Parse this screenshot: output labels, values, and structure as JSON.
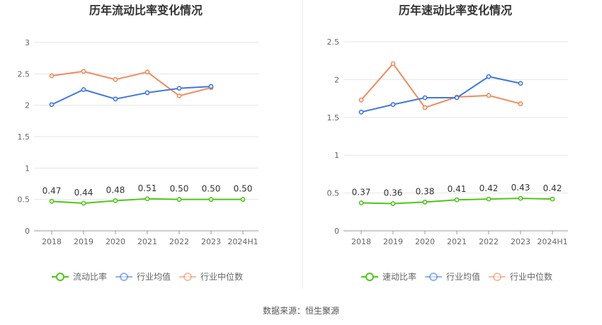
{
  "colors": {
    "company": "#52c41a",
    "industry_avg": "#3f78dc",
    "industry_median": "#f08a5d",
    "grid": "#e6e6e6",
    "axis": "#999999",
    "divider": "#e8e8e8"
  },
  "source": "数据来源：恒生聚源",
  "chart_data": [
    {
      "type": "line",
      "title": "历年流动比率变化情况",
      "categories": [
        "2018",
        "2019",
        "2020",
        "2021",
        "2022",
        "2023",
        "2024H1"
      ],
      "ylim": [
        0,
        3
      ],
      "yticks": [
        "0",
        "0.5",
        "1",
        "1.5",
        "2",
        "2.5",
        "3"
      ],
      "ytick_values": [
        0,
        0.5,
        1,
        1.5,
        2,
        2.5,
        3
      ],
      "legend_position": "bottom",
      "series": [
        {
          "name": "流动比率",
          "key": "company",
          "values": [
            0.47,
            0.44,
            0.48,
            0.51,
            0.5,
            0.5,
            0.5
          ],
          "labels": [
            "0.47",
            "0.44",
            "0.48",
            "0.51",
            "0.50",
            "0.50",
            "0.50"
          ]
        },
        {
          "name": "行业均值",
          "key": "industry_avg",
          "values": [
            2.01,
            2.25,
            2.1,
            2.2,
            2.27,
            2.3,
            null
          ]
        },
        {
          "name": "行业中位数",
          "key": "industry_median",
          "values": [
            2.47,
            2.54,
            2.41,
            2.53,
            2.15,
            2.28,
            null
          ]
        }
      ]
    },
    {
      "type": "line",
      "title": "历年速动比率变化情况",
      "categories": [
        "2018",
        "2019",
        "2020",
        "2021",
        "2022",
        "2023",
        "2024H1"
      ],
      "ylim": [
        0,
        2.5
      ],
      "yticks": [
        "0",
        "0.5",
        "1",
        "1.5",
        "2",
        "2.5"
      ],
      "ytick_values": [
        0,
        0.5,
        1,
        1.5,
        2,
        2.5
      ],
      "legend_position": "bottom",
      "series": [
        {
          "name": "速动比率",
          "key": "company",
          "values": [
            0.37,
            0.36,
            0.38,
            0.41,
            0.42,
            0.43,
            0.42
          ],
          "labels": [
            "0.37",
            "0.36",
            "0.38",
            "0.41",
            "0.42",
            "0.43",
            "0.42"
          ]
        },
        {
          "name": "行业均值",
          "key": "industry_avg",
          "values": [
            1.57,
            1.67,
            1.76,
            1.76,
            2.04,
            1.95,
            null
          ]
        },
        {
          "name": "行业中位数",
          "key": "industry_median",
          "values": [
            1.73,
            2.21,
            1.63,
            1.77,
            1.79,
            1.68,
            null
          ]
        }
      ]
    }
  ]
}
